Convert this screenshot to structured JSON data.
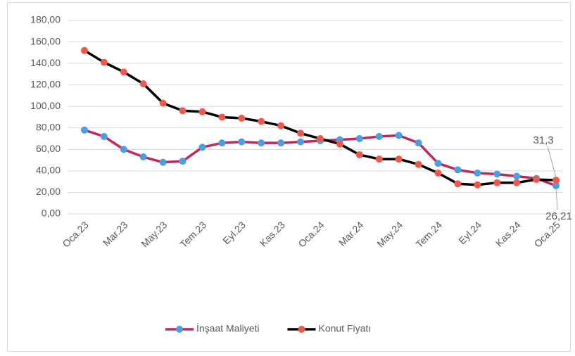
{
  "chart_data": {
    "type": "line",
    "categories": [
      "Oca.23",
      null,
      "Mar.23",
      null,
      "May.23",
      null,
      "Tem.23",
      null,
      "Eyl.23",
      null,
      "Kas.23",
      null,
      "Oca.24",
      null,
      "Mar.24",
      null,
      "May.24",
      null,
      "Tem.24",
      null,
      "Eyl.24",
      null,
      "Kas.24",
      null,
      "Oca.25"
    ],
    "series": [
      {
        "name": "İnşaat Maliyeti",
        "color": "#c0285a",
        "marker_color": "#4b9ee3",
        "values": [
          78,
          72,
          60,
          53,
          48,
          49,
          62,
          66,
          67,
          66,
          66,
          67,
          68,
          69,
          70,
          72,
          73,
          66,
          47,
          41,
          38,
          37,
          35,
          33,
          26.21
        ],
        "value_labels": [
          null,
          null,
          null,
          null,
          null,
          null,
          null,
          null,
          null,
          null,
          null,
          null,
          null,
          null,
          null,
          null,
          null,
          null,
          null,
          null,
          null,
          null,
          null,
          null,
          "26,21"
        ]
      },
      {
        "name": "Konut Fiyatı",
        "color": "#000000",
        "marker_color": "#f0584b",
        "values": [
          152,
          141,
          132,
          121,
          103,
          96,
          95,
          90,
          89,
          86,
          82,
          75,
          70,
          65,
          55,
          51,
          51,
          46,
          38,
          28,
          27,
          29,
          29,
          32,
          31.3
        ],
        "value_labels": [
          null,
          null,
          null,
          null,
          null,
          null,
          null,
          null,
          null,
          null,
          null,
          null,
          null,
          null,
          null,
          null,
          null,
          null,
          null,
          null,
          null,
          null,
          null,
          null,
          "31,3"
        ]
      }
    ],
    "ylim": [
      0,
      180
    ],
    "yticks": [
      {
        "value": 0,
        "label": "0,00"
      },
      {
        "value": 20,
        "label": "20,00"
      },
      {
        "value": 40,
        "label": "40,00"
      },
      {
        "value": 60,
        "label": "60,00"
      },
      {
        "value": 80,
        "label": "80,00"
      },
      {
        "value": 100,
        "label": "100,00"
      },
      {
        "value": 120,
        "label": "120,00"
      },
      {
        "value": 140,
        "label": "140,00"
      },
      {
        "value": 160,
        "label": "160,00"
      },
      {
        "value": 180,
        "label": "180,00"
      }
    ],
    "grid": true,
    "legend": "bottom"
  }
}
